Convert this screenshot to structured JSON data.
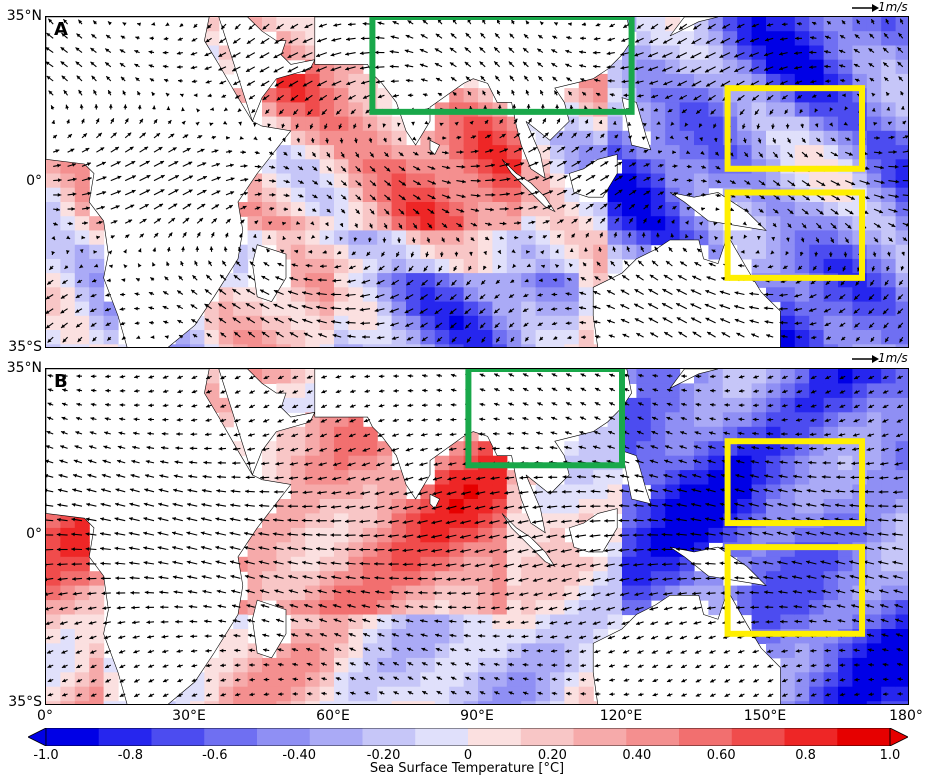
{
  "panels": [
    {
      "letter": "A",
      "green_box": {
        "lon": [
          68,
          122
        ],
        "lat": [
          15,
          35
        ]
      },
      "yellow_boxes": [
        {
          "lon": [
            142,
            170
          ],
          "lat": [
            3,
            20
          ]
        },
        {
          "lon": [
            142,
            170
          ],
          "lat": [
            -20,
            -2
          ]
        }
      ]
    },
    {
      "letter": "B",
      "green_box": {
        "lon": [
          88,
          120
        ],
        "lat": [
          15,
          35
        ]
      },
      "yellow_boxes": [
        {
          "lon": [
            142,
            170
          ],
          "lat": [
            3,
            20
          ]
        },
        {
          "lon": [
            142,
            170
          ],
          "lat": [
            -20,
            -2
          ]
        }
      ]
    }
  ],
  "lat_labels": [
    "35°N",
    "0°",
    "35°S"
  ],
  "lon_labels": [
    "0°",
    "30°E",
    "60°E",
    "90°E",
    "120°E",
    "150°E",
    "180°"
  ],
  "vector_scale": {
    "label": "1m/s"
  },
  "colorbar": {
    "title": "Sea Surface Temperature [°C]",
    "ticks": [
      "-1.0",
      "-0.8",
      "-0.6",
      "-0.40",
      "-0.20",
      "0",
      "0.20",
      "0.40",
      "0.60",
      "0.8",
      "1.0"
    ],
    "colors": [
      "#0000e6",
      "#2626ee",
      "#4c4cf0",
      "#6f6ff2",
      "#8f8ff4",
      "#aaaaf6",
      "#c6c6f8",
      "#e0e0fb",
      "#fbe0e0",
      "#f8c6c6",
      "#f6aaaa",
      "#f48f8f",
      "#f26f6f",
      "#f04c4c",
      "#ee2626",
      "#e60000"
    ]
  },
  "box_colors": {
    "green": "#19a84a",
    "yellow": "#ffef00"
  }
}
